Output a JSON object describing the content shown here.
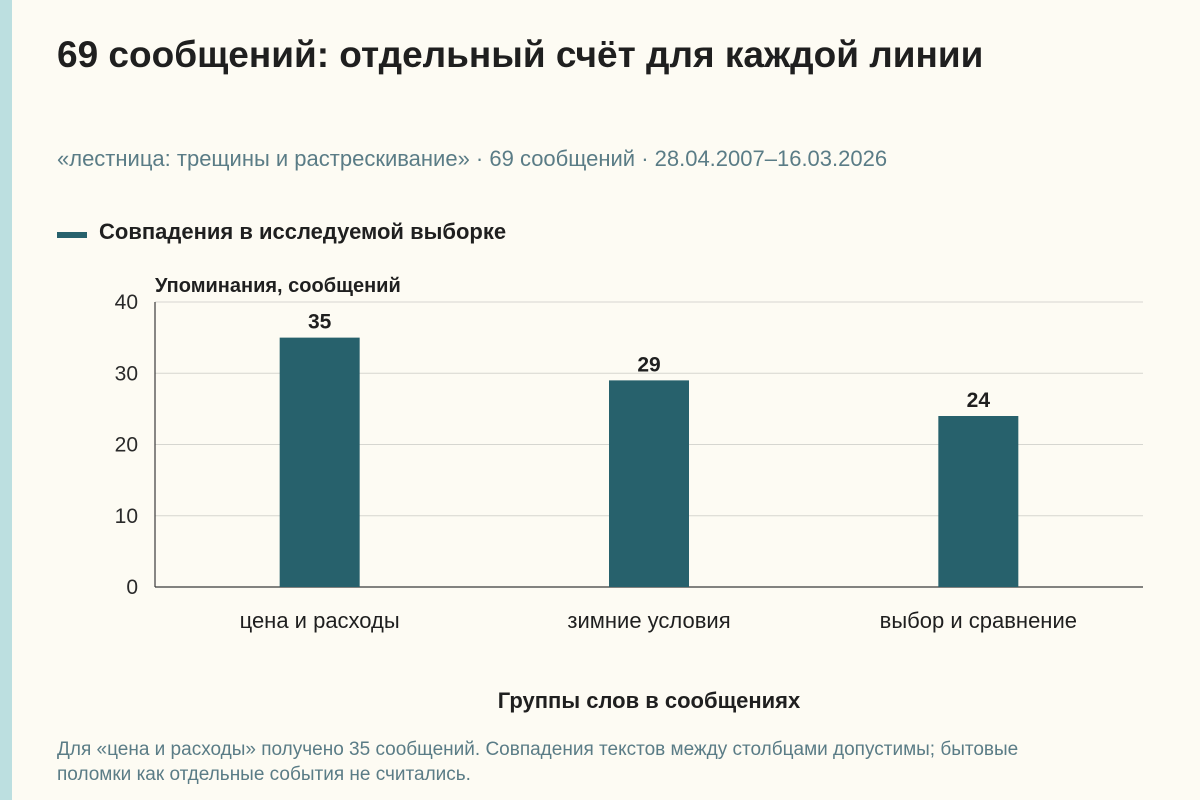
{
  "title": "69 сообщений: отдельный счёт для каждой линии",
  "subtitle": "«лестница: трещины и растрескивание» · 69 сообщений · 28.04.2007–16.03.2026",
  "footnote": "Для «цена и расходы» получено 35 сообщений. Совпадения текстов между столбцами допустимы; бытовые поломки как отдельные события не считались.",
  "colors": {
    "bar": "#27616c",
    "background": "#fdfbf3",
    "accent_stripe": "#bcdfe0",
    "muted_text": "#5a7c86"
  },
  "chart_data": {
    "type": "bar",
    "categories": [
      "цена и расходы",
      "зимние условия",
      "выбор и сравнение"
    ],
    "series": [
      {
        "name": "Совпадения в исследуемой выборке",
        "values": [
          35,
          29,
          24
        ]
      }
    ],
    "data_labels": [
      "35",
      "29",
      "24"
    ],
    "xlabel": "Группы слов в сообщениях",
    "ylabel": "Упоминания, сообщений",
    "ylim": [
      0,
      40
    ],
    "yticks": [
      0,
      10,
      20,
      30,
      40
    ],
    "grid": true,
    "legend_position": "top-left"
  }
}
